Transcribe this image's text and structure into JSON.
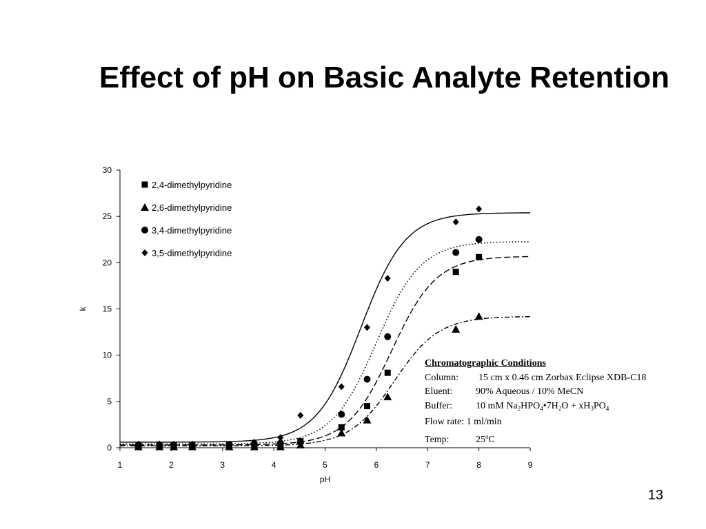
{
  "slide": {
    "title": "Effect of pH on Basic Analyte Retention",
    "number": "13"
  },
  "conditions": {
    "heading": "Chromatographic Conditions",
    "column_label": "Column:",
    "column_value": "15 cm x 0.46 cm Zorbax Eclipse XDB-C18",
    "eluent_label": "Eluent:",
    "eluent_value": "90% Aqueous / 10% MeCN",
    "buffer_label": "Buffer:",
    "buffer_a": "10 mM Na",
    "buffer_a_sub": "2",
    "buffer_b": "HPO",
    "buffer_b_sub": "4",
    "buffer_c": "•7H",
    "buffer_c_sub": "2",
    "buffer_d": "O + xH",
    "buffer_d_sub": "3",
    "buffer_e": "PO",
    "buffer_e_sub": "4",
    "flow_label": "Flow rate:",
    "flow_value": "1 ml/min",
    "temp_label": "Temp:",
    "temp_value": "25",
    "temp_sup": "o",
    "temp_unit": "C"
  },
  "chart_data": {
    "type": "scatter",
    "xlabel": "pH",
    "ylabel": "k",
    "xlim": [
      1,
      9
    ],
    "ylim": [
      0,
      30
    ],
    "xticks": [
      1,
      2,
      3,
      4,
      5,
      6,
      7,
      8,
      9
    ],
    "yticks": [
      0,
      5,
      10,
      15,
      20,
      25,
      30
    ],
    "grid": false,
    "legend_position": "top-left",
    "series": [
      {
        "name": "2,4-dimethylpyridine",
        "marker": "square",
        "line_style": "long-dash",
        "points": [
          [
            1.36,
            0.3
          ],
          [
            1.77,
            0.3
          ],
          [
            2.05,
            0.3
          ],
          [
            2.41,
            0.3
          ],
          [
            3.13,
            0.3
          ],
          [
            3.62,
            0.3
          ],
          [
            4.13,
            0.35
          ],
          [
            4.52,
            0.7
          ],
          [
            5.32,
            2.2
          ],
          [
            5.82,
            4.5
          ],
          [
            6.22,
            8.1
          ],
          [
            7.55,
            19.0
          ],
          [
            8.0,
            20.6
          ]
        ],
        "fit": {
          "pka": 6.3,
          "kmin": 0.3,
          "kmax": 20.7
        }
      },
      {
        "name": "2,6-dimethylpyridine",
        "marker": "triangle",
        "line_style": "dash-dot",
        "points": [
          [
            1.36,
            0.1
          ],
          [
            1.77,
            0.1
          ],
          [
            2.05,
            0.1
          ],
          [
            2.41,
            0.1
          ],
          [
            3.13,
            0.1
          ],
          [
            3.62,
            0.1
          ],
          [
            4.13,
            0.1
          ],
          [
            4.52,
            0.3
          ],
          [
            5.32,
            1.6
          ],
          [
            5.82,
            3.0
          ],
          [
            6.22,
            5.5
          ],
          [
            7.55,
            12.8
          ],
          [
            8.0,
            14.2
          ]
        ],
        "fit": {
          "pka": 6.35,
          "kmin": 0.2,
          "kmax": 14.2
        }
      },
      {
        "name": "3,4-dimethylpyridine",
        "marker": "circle",
        "line_style": "dotted",
        "points": [
          [
            1.36,
            0.2
          ],
          [
            1.77,
            0.2
          ],
          [
            2.05,
            0.2
          ],
          [
            2.41,
            0.2
          ],
          [
            3.13,
            0.3
          ],
          [
            3.62,
            0.4
          ],
          [
            4.13,
            0.5
          ],
          [
            4.52,
            0.6
          ],
          [
            5.32,
            3.6
          ],
          [
            5.82,
            7.4
          ],
          [
            6.22,
            12.0
          ],
          [
            7.55,
            21.1
          ],
          [
            8.0,
            22.5
          ]
        ],
        "fit": {
          "pka": 6.0,
          "kmin": 0.4,
          "kmax": 22.3
        }
      },
      {
        "name": "3,5-dimethylpyridine",
        "marker": "diamond",
        "line_style": "solid",
        "points": [
          [
            1.36,
            0.4
          ],
          [
            1.77,
            0.4
          ],
          [
            2.05,
            0.4
          ],
          [
            2.41,
            0.4
          ],
          [
            3.13,
            0.4
          ],
          [
            3.62,
            0.6
          ],
          [
            4.13,
            1.1
          ],
          [
            4.52,
            3.5
          ],
          [
            5.32,
            6.6
          ],
          [
            5.82,
            13.0
          ],
          [
            6.22,
            18.3
          ],
          [
            7.55,
            24.4
          ],
          [
            8.0,
            25.8
          ]
        ],
        "fit": {
          "pka": 5.7,
          "kmin": 0.6,
          "kmax": 25.4
        }
      }
    ]
  }
}
